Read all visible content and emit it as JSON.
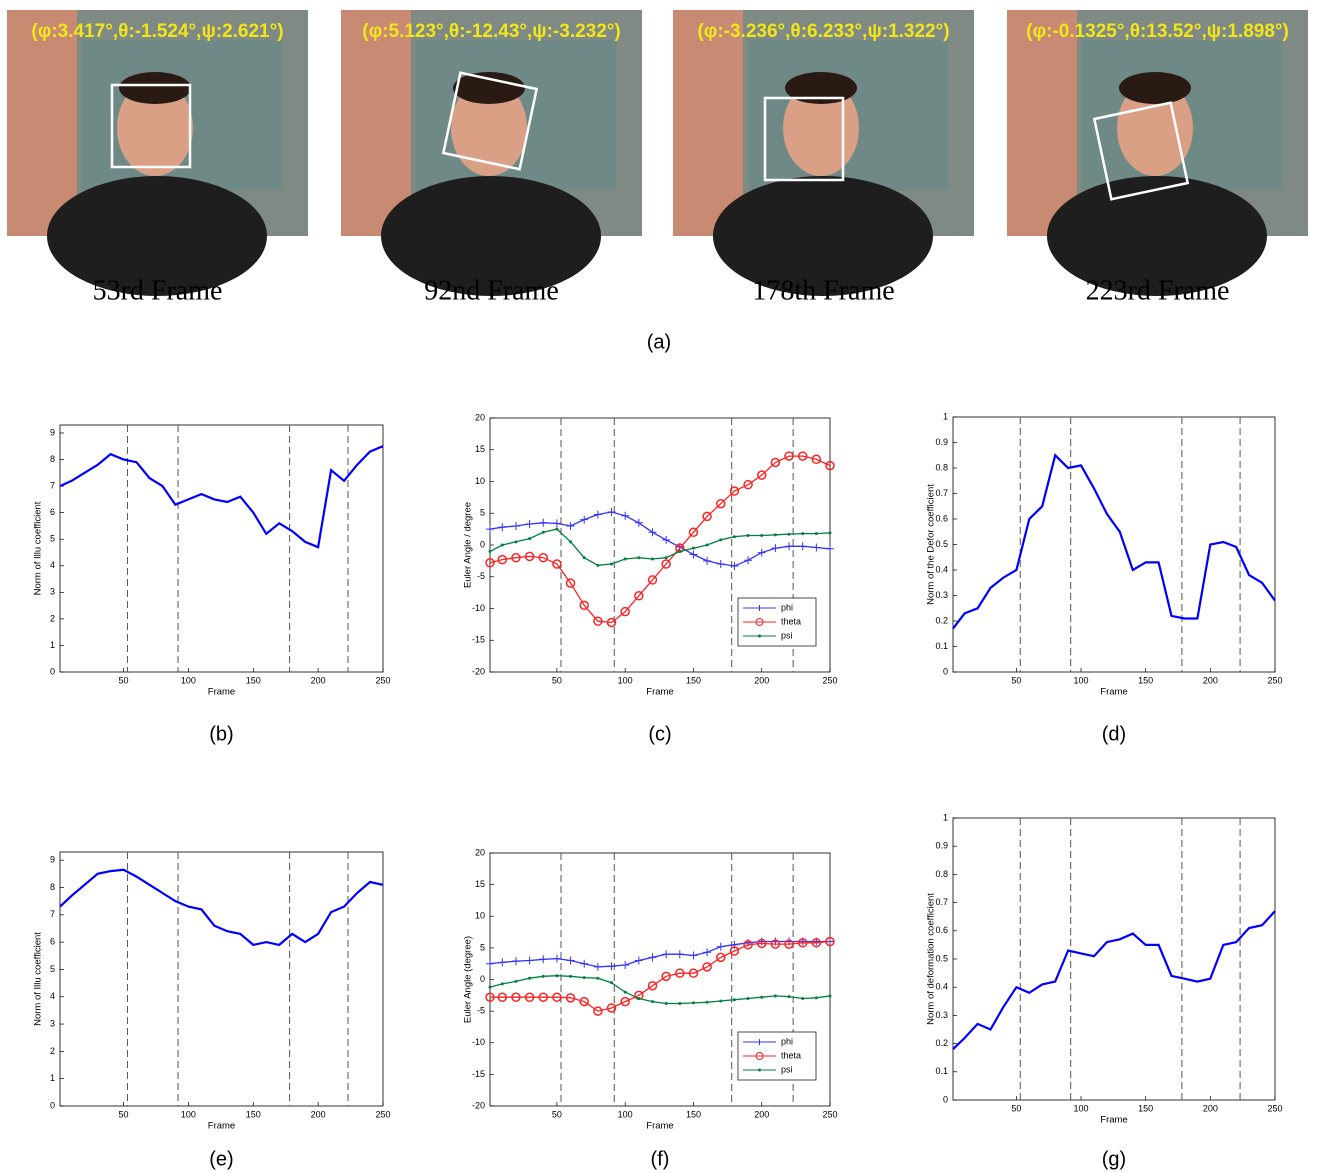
{
  "figure": {
    "frames": [
      {
        "overlay": "(φ:3.417°,θ:-1.524°,ψ:2.621°)",
        "label": "53rd Frame"
      },
      {
        "overlay": "(φ:5.123°,θ:-12.43°,ψ:-3.232°)",
        "label": "92nd Frame"
      },
      {
        "overlay": "(φ:-3.236°,θ:6.233°,ψ:1.322°)",
        "label": "178th Frame"
      },
      {
        "overlay": "(φ:-0.1325°,θ:13.52°,ψ:1.898°)",
        "label": "223rd Frame"
      }
    ],
    "caption": "(a)"
  },
  "chart_data": [
    {
      "type": "line",
      "caption": "(b)",
      "xlabel": "Frame",
      "ylabel": "Norm of Illu coefficient",
      "x": [
        1,
        10,
        20,
        30,
        40,
        50,
        60,
        70,
        80,
        90,
        100,
        110,
        120,
        130,
        140,
        150,
        160,
        170,
        180,
        190,
        200,
        210,
        220,
        230,
        240,
        250
      ],
      "series": [
        {
          "color": "#0000ff",
          "values": [
            7.0,
            7.2,
            7.5,
            7.8,
            8.2,
            8.0,
            7.9,
            7.3,
            7.0,
            6.3,
            6.5,
            6.7,
            6.5,
            6.4,
            6.6,
            6.0,
            5.2,
            5.6,
            5.3,
            4.9,
            4.7,
            7.6,
            7.2,
            7.8,
            8.3,
            8.5
          ]
        }
      ],
      "xlim": [
        1,
        250
      ],
      "xticks": [
        50,
        100,
        150,
        200,
        250
      ],
      "ylim": [
        0,
        9.3
      ],
      "yticks": [
        0,
        1,
        2,
        3,
        4,
        5,
        6,
        7,
        8,
        9
      ],
      "vlines": [
        53,
        92,
        178,
        223
      ]
    },
    {
      "type": "line",
      "caption": "(c)",
      "xlabel": "Frame",
      "ylabel": "Euler Angle / degree",
      "legend": "lower right",
      "x": [
        1,
        10,
        20,
        30,
        40,
        50,
        60,
        70,
        80,
        90,
        100,
        110,
        120,
        130,
        140,
        150,
        160,
        170,
        180,
        190,
        200,
        210,
        220,
        230,
        240,
        250
      ],
      "series": [
        {
          "name": "phi",
          "color": "#3333ff",
          "marker": "plus",
          "values": [
            2.5,
            2.8,
            3,
            3.3,
            3.5,
            3.4,
            3,
            4,
            4.8,
            5.2,
            4.6,
            3.5,
            2,
            0.8,
            -0.3,
            -1.5,
            -2.5,
            -3,
            -3.3,
            -2.4,
            -1.2,
            -0.5,
            -0.2,
            -0.2,
            -0.4,
            -0.6
          ]
        },
        {
          "name": "theta",
          "color": "#ff2222",
          "marker": "circle",
          "values": [
            -2.8,
            -2.3,
            -2,
            -1.8,
            -2,
            -3,
            -6,
            -9.5,
            -12,
            -12.2,
            -10.5,
            -8,
            -5.5,
            -3,
            -0.5,
            2,
            4.5,
            6.5,
            8.5,
            9.5,
            11,
            13,
            14,
            14,
            13.5,
            12.5
          ]
        },
        {
          "name": "psi",
          "color": "#008040",
          "marker": "dot",
          "values": [
            -1,
            0,
            0.5,
            1,
            2,
            2.5,
            0.5,
            -2,
            -3.2,
            -3,
            -2.2,
            -2,
            -2.2,
            -2,
            -1,
            -0.5,
            0,
            0.8,
            1.3,
            1.5,
            1.5,
            1.6,
            1.7,
            1.8,
            1.8,
            1.9
          ]
        }
      ],
      "xlim": [
        1,
        250
      ],
      "xticks": [
        50,
        100,
        150,
        200,
        250
      ],
      "ylim": [
        -20,
        20
      ],
      "yticks": [
        -20,
        -15,
        -10,
        -5,
        0,
        5,
        10,
        15,
        20
      ],
      "vlines": [
        53,
        92,
        178,
        223
      ]
    },
    {
      "type": "line",
      "caption": "(d)",
      "xlabel": "Frame",
      "ylabel": "Norm of the Defor coefficient",
      "x": [
        1,
        10,
        20,
        30,
        40,
        50,
        60,
        70,
        80,
        90,
        100,
        110,
        120,
        130,
        140,
        150,
        160,
        170,
        180,
        190,
        200,
        210,
        220,
        230,
        240,
        250
      ],
      "series": [
        {
          "color": "#0000ff",
          "values": [
            0.17,
            0.23,
            0.25,
            0.33,
            0.37,
            0.4,
            0.6,
            0.65,
            0.85,
            0.8,
            0.81,
            0.72,
            0.62,
            0.55,
            0.4,
            0.43,
            0.43,
            0.22,
            0.21,
            0.21,
            0.5,
            0.51,
            0.49,
            0.38,
            0.35,
            0.28
          ]
        }
      ],
      "xlim": [
        1,
        250
      ],
      "xticks": [
        50,
        100,
        150,
        200,
        250
      ],
      "ylim": [
        0,
        1
      ],
      "yticks": [
        0,
        0.1,
        0.2,
        0.3,
        0.4,
        0.5,
        0.6,
        0.7,
        0.8,
        0.9,
        1
      ],
      "vlines": [
        53,
        92,
        178,
        223
      ]
    },
    {
      "type": "line",
      "caption": "(e)",
      "xlabel": "Frame",
      "ylabel": "Norm of Illu coefficient",
      "x": [
        1,
        10,
        20,
        30,
        40,
        50,
        60,
        70,
        80,
        90,
        100,
        110,
        120,
        130,
        140,
        150,
        160,
        170,
        180,
        190,
        200,
        210,
        220,
        230,
        240,
        250
      ],
      "series": [
        {
          "color": "#0000ff",
          "values": [
            7.3,
            7.7,
            8.1,
            8.5,
            8.6,
            8.65,
            8.4,
            8.1,
            7.8,
            7.5,
            7.3,
            7.2,
            6.6,
            6.4,
            6.3,
            5.9,
            6.0,
            5.9,
            6.3,
            6.0,
            6.3,
            7.1,
            7.3,
            7.8,
            8.2,
            8.1
          ]
        }
      ],
      "xlim": [
        1,
        250
      ],
      "xticks": [
        50,
        100,
        150,
        200,
        250
      ],
      "ylim": [
        0,
        9.3
      ],
      "yticks": [
        0,
        1,
        2,
        3,
        4,
        5,
        6,
        7,
        8,
        9
      ],
      "vlines": [
        53,
        92,
        178,
        223
      ]
    },
    {
      "type": "line",
      "caption": "(f)",
      "xlabel": "Frame",
      "ylabel": "Euler Angle (degree)",
      "legend": "lower right",
      "x": [
        1,
        10,
        20,
        30,
        40,
        50,
        60,
        70,
        80,
        90,
        100,
        110,
        120,
        130,
        140,
        150,
        160,
        170,
        180,
        190,
        200,
        210,
        220,
        230,
        240,
        250
      ],
      "series": [
        {
          "name": "phi",
          "color": "#3333ff",
          "marker": "plus",
          "values": [
            2.5,
            2.7,
            2.9,
            3,
            3.2,
            3.3,
            3,
            2.5,
            2,
            2.1,
            2.3,
            3,
            3.5,
            4,
            4,
            3.8,
            4.3,
            5.2,
            5.5,
            5.8,
            6,
            6,
            6,
            6,
            6,
            6
          ]
        },
        {
          "name": "theta",
          "color": "#ff2222",
          "marker": "circle",
          "values": [
            -2.8,
            -2.8,
            -2.8,
            -2.8,
            -2.8,
            -2.8,
            -2.9,
            -3.5,
            -5,
            -4.5,
            -3.5,
            -2.5,
            -1,
            0.5,
            1,
            1,
            2,
            3.5,
            4.5,
            5.5,
            5.7,
            5.6,
            5.6,
            5.8,
            5.8,
            6
          ]
        },
        {
          "name": "psi",
          "color": "#008040",
          "marker": "dot",
          "values": [
            -1.2,
            -0.7,
            -0.3,
            0.2,
            0.5,
            0.6,
            0.5,
            0.3,
            0.2,
            -0.5,
            -2,
            -3,
            -3.5,
            -3.8,
            -3.8,
            -3.7,
            -3.6,
            -3.4,
            -3.2,
            -3,
            -2.8,
            -2.6,
            -2.7,
            -3,
            -2.9,
            -2.6
          ]
        }
      ],
      "xlim": [
        1,
        250
      ],
      "xticks": [
        50,
        100,
        150,
        200,
        250
      ],
      "ylim": [
        -20,
        20
      ],
      "yticks": [
        -20,
        -15,
        -10,
        -5,
        0,
        5,
        10,
        15,
        20
      ],
      "vlines": [
        53,
        92,
        178,
        223
      ]
    },
    {
      "type": "line",
      "caption": "(g)",
      "xlabel": "Frame",
      "ylabel": "Norm of deformation coefficient",
      "x": [
        1,
        10,
        20,
        30,
        40,
        50,
        60,
        70,
        80,
        90,
        100,
        110,
        120,
        130,
        140,
        150,
        160,
        170,
        180,
        190,
        200,
        210,
        220,
        230,
        240,
        250
      ],
      "series": [
        {
          "color": "#0000ff",
          "values": [
            0.18,
            0.22,
            0.27,
            0.25,
            0.33,
            0.4,
            0.38,
            0.41,
            0.42,
            0.53,
            0.52,
            0.51,
            0.56,
            0.57,
            0.59,
            0.55,
            0.55,
            0.44,
            0.43,
            0.42,
            0.43,
            0.55,
            0.56,
            0.61,
            0.62,
            0.67
          ]
        }
      ],
      "xlim": [
        1,
        250
      ],
      "xticks": [
        50,
        100,
        150,
        200,
        250
      ],
      "ylim": [
        0,
        1
      ],
      "yticks": [
        0,
        0.1,
        0.2,
        0.3,
        0.4,
        0.5,
        0.6,
        0.7,
        0.8,
        0.9,
        1
      ],
      "vlines": [
        53,
        92,
        178,
        223
      ]
    }
  ]
}
